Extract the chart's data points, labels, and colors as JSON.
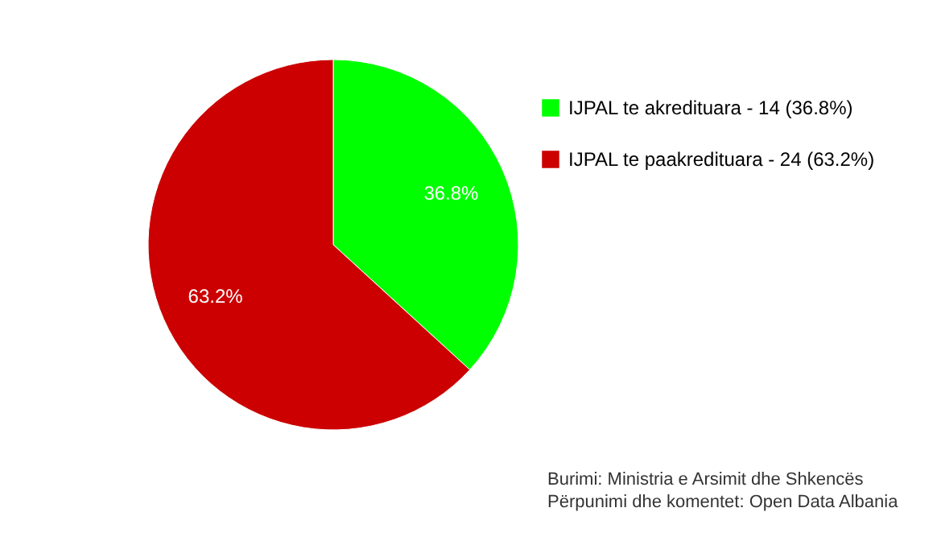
{
  "chart_data": {
    "type": "pie",
    "categories": [
      "IJPAL te akredituara - 14 (36.8%)",
      "IJPAL te paakredituara - 24 (63.2%)"
    ],
    "values": [
      36.8,
      63.2
    ],
    "colors": [
      "#00ff00",
      "#cc0000"
    ],
    "value_labels": [
      "36.8%",
      "63.2%"
    ],
    "legend": "right",
    "annotations": [
      "Burimi: Ministria e Arsimit dhe Shkencës",
      "Përpunimi dhe komentet: Open Data Albania"
    ]
  }
}
